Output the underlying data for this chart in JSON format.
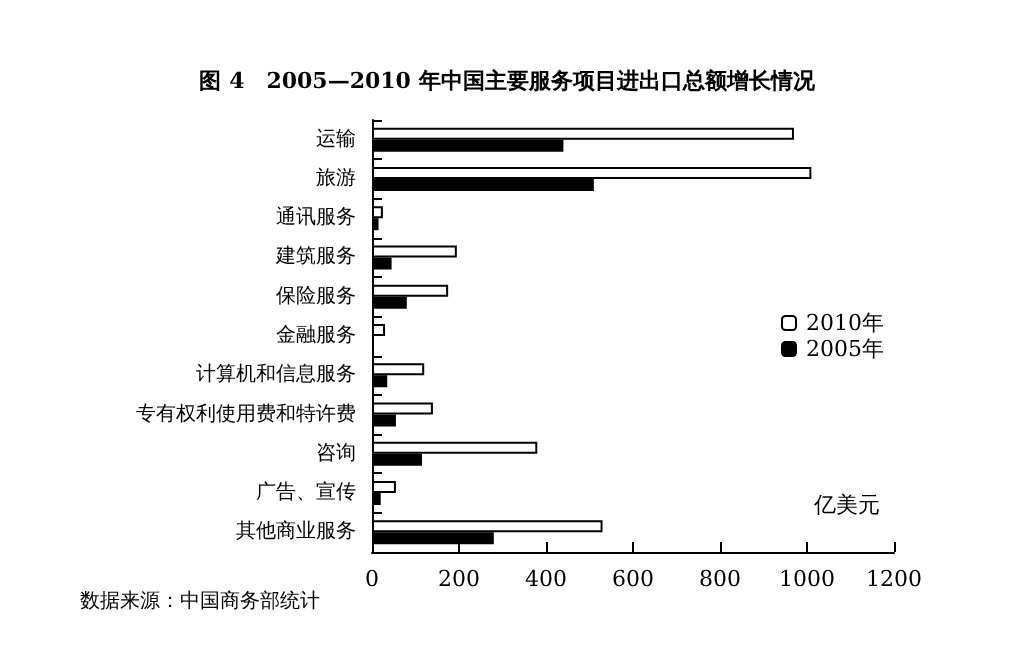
{
  "chart_data": {
    "type": "bar",
    "orientation": "horizontal",
    "title": "图 4　2005—2010 年中国主要服务项目进出口总额增长情况",
    "xlabel": "亿美元",
    "annotations": [
      "数据来源：中国商务部统计"
    ],
    "categories": [
      "运输",
      "旅游",
      "通讯服务",
      "建筑服务",
      "保险服务",
      "金融服务",
      "计算机和信息服务",
      "专有权利使用费和特许费",
      "咨询",
      "广告、宣传",
      "其他商业服务"
    ],
    "series": [
      {
        "name": "2010年",
        "color": "#ffffff",
        "values": [
          970,
          1010,
          25,
          195,
          175,
          30,
          120,
          140,
          380,
          55,
          530
        ]
      },
      {
        "name": "2005年",
        "color": "#000000",
        "values": [
          440,
          510,
          15,
          45,
          80,
          null,
          35,
          55,
          115,
          20,
          280
        ]
      }
    ],
    "xlim": [
      0,
      1200
    ],
    "xticks": [
      0,
      200,
      400,
      600,
      800,
      1000,
      1200
    ],
    "grid": false,
    "legend": "right"
  }
}
